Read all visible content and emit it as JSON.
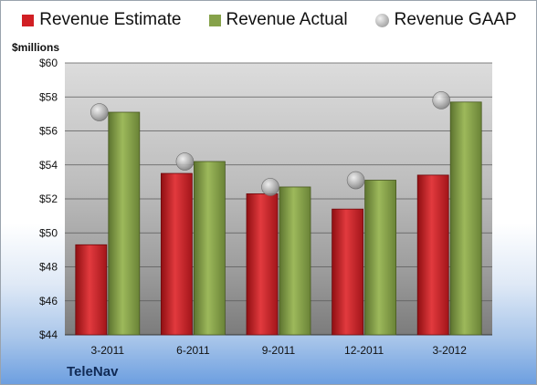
{
  "units_label": "$millions",
  "company": "TeleNav",
  "colors": {
    "estimate": "#d11f24",
    "actual": "#86a24a",
    "gaap": "#b8b8b8"
  },
  "chart_data": {
    "type": "bar",
    "categories": [
      "3-2011",
      "6-2011",
      "9-2011",
      "12-2011",
      "3-2012"
    ],
    "series": [
      {
        "name": "Revenue Estimate",
        "values": [
          49.3,
          53.5,
          52.3,
          51.4,
          53.4
        ]
      },
      {
        "name": "Revenue Actual",
        "values": [
          57.1,
          54.2,
          52.7,
          53.1,
          57.7
        ]
      },
      {
        "name": "Revenue GAAP",
        "values": [
          57.1,
          54.2,
          52.7,
          53.1,
          57.8
        ],
        "marker": "circle"
      }
    ],
    "ylim": [
      44,
      60
    ],
    "yticks": [
      "$44",
      "$46",
      "$48",
      "$50",
      "$52",
      "$54",
      "$56",
      "$58",
      "$60"
    ],
    "grid": true,
    "legend": "top-center"
  }
}
